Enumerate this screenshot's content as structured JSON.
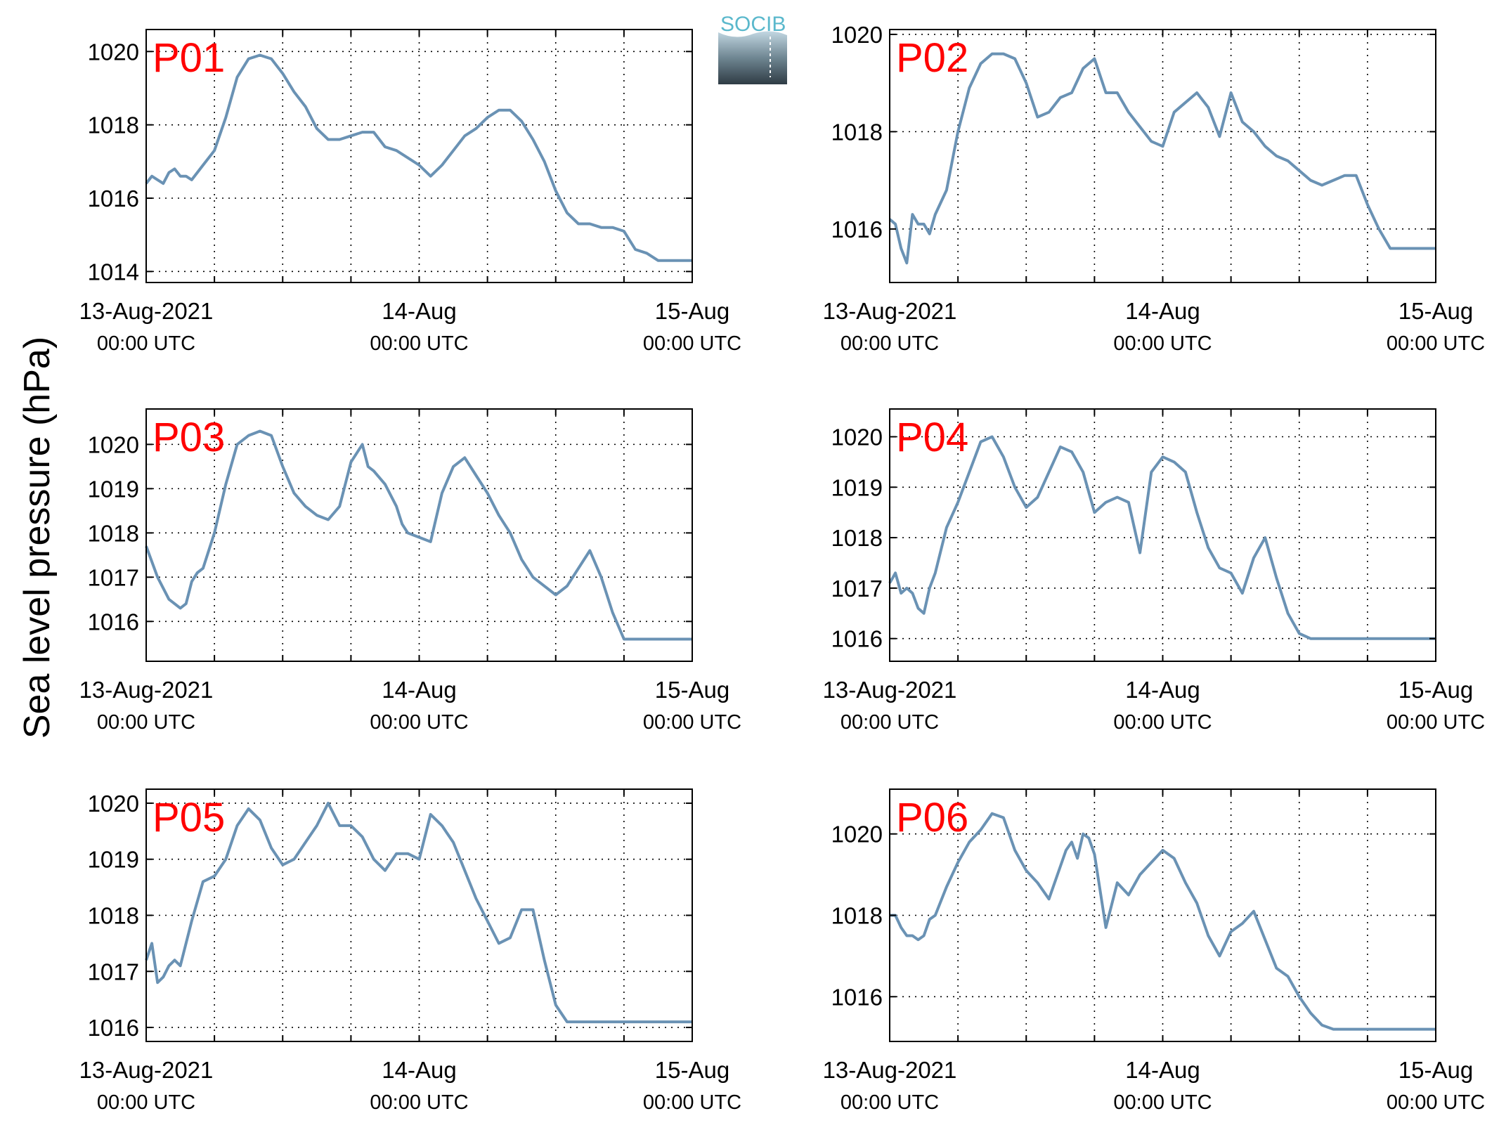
{
  "y_axis_label": "Sea level pressure (hPa)",
  "logo": {
    "text": "SOCIB",
    "text_color": "#5ab8cc"
  },
  "colors": {
    "line": "#6a92b4",
    "panel_label": "#ff0000",
    "axes": "#000000"
  },
  "chart_data": [
    {
      "type": "line",
      "panel": "P01",
      "ylim": [
        1013.7,
        1020.6
      ],
      "yticks": [
        1014,
        1016,
        1018,
        1020
      ],
      "xticks": [
        {
          "label": "13-Aug-2021",
          "sub": "00:00 UTC"
        },
        {
          "label": "14-Aug",
          "sub": "00:00 UTC"
        },
        {
          "label": "15-Aug",
          "sub": "00:00 UTC"
        }
      ],
      "xlim_hours": [
        0,
        48
      ],
      "grid": true,
      "series": [
        {
          "x_hours": [
            0,
            0.5,
            1,
            1.5,
            2,
            2.5,
            3,
            3.5,
            4,
            4.5,
            5,
            6,
            7,
            8,
            9,
            10,
            11,
            12,
            13,
            14,
            15,
            16,
            17,
            18,
            19,
            20,
            21,
            22,
            23,
            24,
            25,
            26,
            27,
            28,
            29,
            30,
            31,
            32,
            33,
            34,
            35,
            36,
            37,
            38,
            39,
            40,
            41,
            42,
            43,
            44,
            45,
            46,
            47,
            48
          ],
          "values": [
            1016.4,
            1016.6,
            1016.5,
            1016.4,
            1016.7,
            1016.8,
            1016.6,
            1016.6,
            1016.5,
            1016.7,
            1016.9,
            1017.3,
            1018.2,
            1019.3,
            1019.8,
            1019.9,
            1019.8,
            1019.4,
            1018.9,
            1018.5,
            1017.9,
            1017.6,
            1017.6,
            1017.7,
            1017.8,
            1017.8,
            1017.4,
            1017.3,
            1017.1,
            1016.9,
            1016.6,
            1016.9,
            1017.3,
            1017.7,
            1017.9,
            1018.2,
            1018.4,
            1018.4,
            1018.1,
            1017.6,
            1017,
            1016.2,
            1015.6,
            1015.3,
            1015.3,
            1015.2,
            1015.2,
            1015.1,
            1014.6,
            1014.5,
            1014.3,
            1014.3,
            1014.3,
            1014.3
          ]
        }
      ]
    },
    {
      "type": "line",
      "panel": "P02",
      "ylim": [
        1014.9,
        1020.1
      ],
      "yticks": [
        1016,
        1018,
        1020
      ],
      "xticks": [
        {
          "label": "13-Aug-2021",
          "sub": "00:00 UTC"
        },
        {
          "label": "14-Aug",
          "sub": "00:00 UTC"
        },
        {
          "label": "15-Aug",
          "sub": "00:00 UTC"
        }
      ],
      "xlim_hours": [
        0,
        48
      ],
      "grid": true,
      "series": [
        {
          "x_hours": [
            0,
            0.5,
            1,
            1.5,
            2,
            2.5,
            3,
            3.5,
            4,
            5,
            6,
            7,
            8,
            9,
            10,
            11,
            12,
            13,
            14,
            15,
            16,
            17,
            18,
            19,
            20,
            21,
            22,
            23,
            24,
            25,
            26,
            27,
            28,
            29,
            30,
            31,
            32,
            33,
            34,
            35,
            36,
            37,
            38,
            39,
            40,
            41,
            42,
            43,
            44,
            45,
            46,
            47,
            48
          ],
          "values": [
            1016.2,
            1016.1,
            1015.6,
            1015.3,
            1016.3,
            1016.1,
            1016.1,
            1015.9,
            1016.3,
            1016.8,
            1018,
            1018.9,
            1019.4,
            1019.6,
            1019.6,
            1019.5,
            1019,
            1018.3,
            1018.4,
            1018.7,
            1018.8,
            1019.3,
            1019.5,
            1018.8,
            1018.8,
            1018.4,
            1018.1,
            1017.8,
            1017.7,
            1018.4,
            1018.6,
            1018.8,
            1018.5,
            1017.9,
            1018.8,
            1018.2,
            1018,
            1017.7,
            1017.5,
            1017.4,
            1017.2,
            1017,
            1016.9,
            1017,
            1017.1,
            1017.1,
            1016.5,
            1016,
            1015.6,
            1015.6,
            1015.6,
            1015.6,
            1015.6
          ]
        }
      ]
    },
    {
      "type": "line",
      "panel": "P03",
      "ylim": [
        1015.1,
        1020.8
      ],
      "yticks": [
        1016,
        1017,
        1018,
        1019,
        1020
      ],
      "xticks": [
        {
          "label": "13-Aug-2021",
          "sub": "00:00 UTC"
        },
        {
          "label": "14-Aug",
          "sub": "00:00 UTC"
        },
        {
          "label": "15-Aug",
          "sub": "00:00 UTC"
        }
      ],
      "xlim_hours": [
        0,
        48
      ],
      "grid": true,
      "series": [
        {
          "x_hours": [
            0,
            1,
            2,
            3,
            3.5,
            4,
            4.5,
            5,
            6,
            7,
            8,
            9,
            10,
            11,
            12,
            13,
            14,
            15,
            16,
            17,
            18,
            19,
            19.5,
            20,
            21,
            22,
            22.5,
            23,
            24,
            25,
            26,
            27,
            28,
            29,
            30,
            31,
            32,
            33,
            34,
            35,
            36,
            37,
            38,
            39,
            40,
            41,
            42,
            43,
            44,
            45,
            46,
            47,
            48
          ],
          "values": [
            1017.7,
            1017,
            1016.5,
            1016.3,
            1016.4,
            1016.9,
            1017.1,
            1017.2,
            1018,
            1019.1,
            1020,
            1020.2,
            1020.3,
            1020.2,
            1019.5,
            1018.9,
            1018.6,
            1018.4,
            1018.3,
            1018.6,
            1019.6,
            1020,
            1019.5,
            1019.4,
            1019.1,
            1018.6,
            1018.2,
            1018,
            1017.9,
            1017.8,
            1018.9,
            1019.5,
            1019.7,
            1019.3,
            1018.9,
            1018.4,
            1018,
            1017.4,
            1017,
            1016.8,
            1016.6,
            1016.8,
            1017.2,
            1017.6,
            1017,
            1016.2,
            1015.6,
            1015.6,
            1015.6,
            1015.6,
            1015.6,
            1015.6,
            1015.6
          ]
        }
      ]
    },
    {
      "type": "line",
      "panel": "P04",
      "ylim": [
        1015.55,
        1020.55
      ],
      "yticks": [
        1016,
        1017,
        1018,
        1019,
        1020
      ],
      "xticks": [
        {
          "label": "13-Aug-2021",
          "sub": "00:00 UTC"
        },
        {
          "label": "14-Aug",
          "sub": "00:00 UTC"
        },
        {
          "label": "15-Aug",
          "sub": "00:00 UTC"
        }
      ],
      "xlim_hours": [
        0,
        48
      ],
      "grid": true,
      "series": [
        {
          "x_hours": [
            0,
            0.5,
            1,
            1.5,
            2,
            2.5,
            3,
            3.5,
            4,
            5,
            6,
            7,
            8,
            9,
            10,
            11,
            12,
            13,
            14,
            15,
            16,
            17,
            18,
            19,
            20,
            21,
            22,
            23,
            24,
            25,
            26,
            27,
            28,
            29,
            30,
            31,
            32,
            33,
            34,
            35,
            36,
            37,
            38,
            39,
            40,
            41,
            42,
            43,
            44,
            45,
            46,
            47,
            48
          ],
          "values": [
            1017.1,
            1017.3,
            1016.9,
            1017,
            1016.9,
            1016.6,
            1016.5,
            1017,
            1017.3,
            1018.2,
            1018.7,
            1019.3,
            1019.9,
            1020,
            1019.6,
            1019,
            1018.6,
            1018.8,
            1019.3,
            1019.8,
            1019.7,
            1019.3,
            1018.5,
            1018.7,
            1018.8,
            1018.7,
            1017.7,
            1019.3,
            1019.6,
            1019.5,
            1019.3,
            1018.5,
            1017.8,
            1017.4,
            1017.3,
            1016.9,
            1017.6,
            1018,
            1017.2,
            1016.5,
            1016.1,
            1016,
            1016,
            1016,
            1016,
            1016,
            1016,
            1016,
            1016,
            1016,
            1016,
            1016,
            1016
          ]
        }
      ]
    },
    {
      "type": "line",
      "panel": "P05",
      "ylim": [
        1015.75,
        1020.25
      ],
      "yticks": [
        1016,
        1017,
        1018,
        1019,
        1020
      ],
      "xticks": [
        {
          "label": "13-Aug-2021",
          "sub": "00:00 UTC"
        },
        {
          "label": "14-Aug",
          "sub": "00:00 UTC"
        },
        {
          "label": "15-Aug",
          "sub": "00:00 UTC"
        }
      ],
      "xlim_hours": [
        0,
        48
      ],
      "grid": true,
      "series": [
        {
          "x_hours": [
            0,
            0.5,
            1,
            1.5,
            2,
            2.5,
            3,
            3.5,
            4,
            5,
            6,
            7,
            8,
            9,
            10,
            11,
            12,
            13,
            14,
            15,
            16,
            17,
            18,
            19,
            20,
            21,
            22,
            23,
            24,
            25,
            26,
            27,
            28,
            29,
            30,
            31,
            32,
            33,
            34,
            35,
            36,
            37,
            38,
            39,
            40,
            41,
            42,
            43,
            44,
            45,
            46,
            47,
            48
          ],
          "values": [
            1017.2,
            1017.5,
            1016.8,
            1016.9,
            1017.1,
            1017.2,
            1017.1,
            1017.5,
            1017.9,
            1018.6,
            1018.7,
            1019,
            1019.6,
            1019.9,
            1019.7,
            1019.2,
            1018.9,
            1019,
            1019.3,
            1019.6,
            1020,
            1019.6,
            1019.6,
            1019.4,
            1019,
            1018.8,
            1019.1,
            1019.1,
            1019,
            1019.8,
            1019.6,
            1019.3,
            1018.8,
            1018.3,
            1017.9,
            1017.5,
            1017.6,
            1018.1,
            1018.1,
            1017.2,
            1016.4,
            1016.1,
            1016.1,
            1016.1,
            1016.1,
            1016.1,
            1016.1,
            1016.1,
            1016.1,
            1016.1,
            1016.1,
            1016.1,
            1016.1
          ]
        }
      ]
    },
    {
      "type": "line",
      "panel": "P06",
      "ylim": [
        1014.9,
        1021.1
      ],
      "yticks": [
        1016,
        1018,
        1020
      ],
      "xticks": [
        {
          "label": "13-Aug-2021",
          "sub": "00:00 UTC"
        },
        {
          "label": "14-Aug",
          "sub": "00:00 UTC"
        },
        {
          "label": "15-Aug",
          "sub": "00:00 UTC"
        }
      ],
      "xlim_hours": [
        0,
        48
      ],
      "grid": true,
      "series": [
        {
          "x_hours": [
            0,
            0.5,
            1,
            1.5,
            2,
            2.5,
            3,
            3.5,
            4,
            5,
            6,
            7,
            8,
            9,
            10,
            11,
            12,
            13,
            14,
            15,
            15.5,
            16,
            16.5,
            17,
            17.5,
            18,
            19,
            20,
            21,
            22,
            23,
            24,
            25,
            26,
            27,
            28,
            29,
            30,
            31,
            32,
            33,
            34,
            35,
            36,
            37,
            38,
            39,
            40,
            41,
            42,
            43,
            44,
            45,
            46,
            47,
            48
          ],
          "values": [
            1018,
            1018,
            1017.7,
            1017.5,
            1017.5,
            1017.4,
            1017.5,
            1017.9,
            1018,
            1018.7,
            1019.3,
            1019.8,
            1020.1,
            1020.5,
            1020.4,
            1019.6,
            1019.1,
            1018.8,
            1018.4,
            1019.2,
            1019.6,
            1019.8,
            1019.4,
            1020,
            1019.9,
            1019.5,
            1017.7,
            1018.8,
            1018.5,
            1019,
            1019.3,
            1019.6,
            1019.4,
            1018.8,
            1018.3,
            1017.5,
            1017,
            1017.6,
            1017.8,
            1018.1,
            1017.4,
            1016.7,
            1016.5,
            1016,
            1015.6,
            1015.3,
            1015.2,
            1015.2,
            1015.2,
            1015.2,
            1015.2,
            1015.2,
            1015.2,
            1015.2,
            1015.2,
            1015.2
          ]
        }
      ]
    }
  ]
}
